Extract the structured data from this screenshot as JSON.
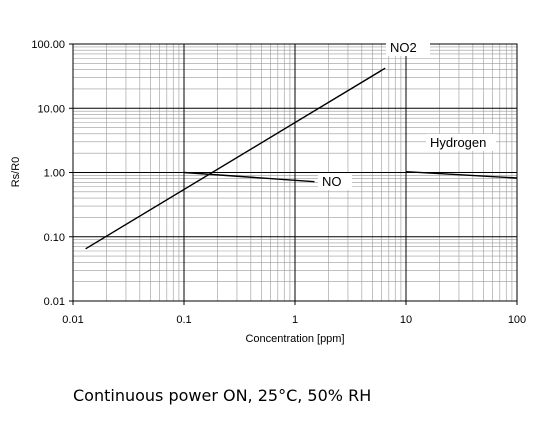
{
  "chart_data": {
    "type": "line",
    "xlabel": "Concentration [ppm]",
    "ylabel": "Rs/R0",
    "xscale": "log",
    "yscale": "log",
    "xlim": [
      0.01,
      100
    ],
    "ylim": [
      0.01,
      100
    ],
    "grid": true,
    "x_ticks": [
      "0.01",
      "0.1",
      "1",
      "10",
      "100"
    ],
    "y_ticks": [
      "0.01",
      "0.10",
      "1.00",
      "10.00",
      "100.00"
    ],
    "series": [
      {
        "name": "NO2",
        "x": [
          0.013,
          6.5
        ],
        "y": [
          0.065,
          42
        ]
      },
      {
        "name": "NO",
        "x": [
          0.1,
          1.5
        ],
        "y": [
          1.0,
          0.72
        ]
      },
      {
        "name": "Hydrogen",
        "x": [
          10,
          100
        ],
        "y": [
          1.03,
          0.82
        ]
      }
    ],
    "caption": "Continuous power ON, 25°C, 50% RH"
  }
}
